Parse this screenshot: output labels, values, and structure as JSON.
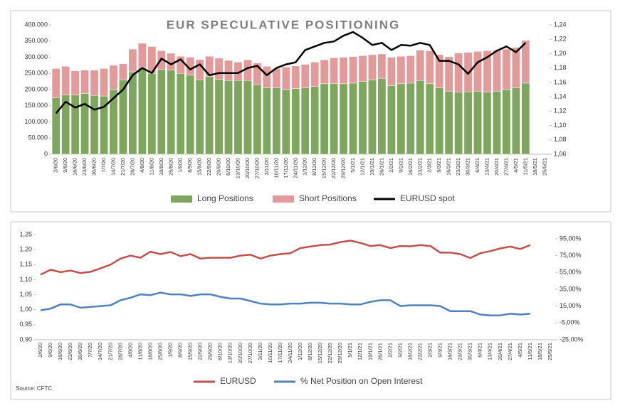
{
  "chart_data": [
    {
      "type": "bar",
      "title": "EUR SPECULATIVE POSITIONING",
      "categories": [
        "2/6/20",
        "9/6/20",
        "16/6/20",
        "23/6/20",
        "30/6/20",
        "7/7/20",
        "14/7/20",
        "21/7/20",
        "28/7/20",
        "4/8/20",
        "11/8/20",
        "18/8/20",
        "25/8/20",
        "1/9/20",
        "8/9/20",
        "15/9/20",
        "22/9/20",
        "29/9/20",
        "6/10/20",
        "13/10/20",
        "20/10/20",
        "27/10/20",
        "3/11/20",
        "10/11/20",
        "17/11/20",
        "24/11/20",
        "1/12/20",
        "8/12/20",
        "15/12/20",
        "22/12/20",
        "29/12/20",
        "5/1/21",
        "12/1/21",
        "19/1/21",
        "26/1/21",
        "2/2/21",
        "9/2/21",
        "16/2/21",
        "23/2/21",
        "2/3/21",
        "9/3/21",
        "16/3/21",
        "23/3/21",
        "30/3/21",
        "6/4/21",
        "13/4/21",
        "20/4/21",
        "27/4/21",
        "4/5/21",
        "11/5/21",
        "18/5/21",
        "25/5/21"
      ],
      "series": [
        {
          "name": "Long Positions",
          "type": "bar",
          "color": "#7ea65e",
          "values": [
            175000,
            183000,
            183000,
            188000,
            182000,
            180000,
            200000,
            230000,
            255000,
            268000,
            250000,
            262000,
            260000,
            250000,
            245000,
            230000,
            240000,
            232000,
            228000,
            228000,
            228000,
            215000,
            205000,
            205000,
            200000,
            203000,
            205000,
            210000,
            218000,
            218000,
            218000,
            220000,
            225000,
            230000,
            235000,
            212000,
            218000,
            220000,
            228000,
            218000,
            205000,
            195000,
            192000,
            193000,
            195000,
            192000,
            195000,
            200000,
            205000,
            220000,
            null,
            null
          ]
        },
        {
          "name": "Short Positions",
          "type": "bar",
          "color": "#e29a9a",
          "values": [
            90000,
            89000,
            75000,
            72000,
            78000,
            85000,
            75000,
            50000,
            70000,
            75000,
            83000,
            58000,
            52000,
            53000,
            55000,
            63000,
            63000,
            65000,
            62000,
            57000,
            64000,
            67000,
            67000,
            60000,
            70000,
            70000,
            73000,
            75000,
            74000,
            80000,
            82000,
            82000,
            80000,
            78000,
            75000,
            88000,
            85000,
            85000,
            94000,
            102000,
            103000,
            107000,
            121000,
            122000,
            123000,
            128000,
            127000,
            125000,
            125000,
            132000,
            null,
            null
          ]
        },
        {
          "name": "EURUSD spot",
          "type": "line",
          "axis": "y2",
          "color": "#000000",
          "values": [
            1.117,
            1.133,
            1.125,
            1.13,
            1.122,
            1.126,
            1.138,
            1.15,
            1.17,
            1.18,
            1.173,
            1.193,
            1.185,
            1.192,
            1.178,
            1.185,
            1.17,
            1.173,
            1.173,
            1.173,
            1.18,
            1.183,
            1.17,
            1.18,
            1.185,
            1.188,
            1.205,
            1.21,
            1.215,
            1.217,
            1.225,
            1.23,
            1.222,
            1.212,
            1.215,
            1.205,
            1.212,
            1.211,
            1.215,
            1.212,
            1.19,
            1.19,
            1.185,
            1.172,
            1.188,
            1.195,
            1.204,
            1.21,
            1.202,
            1.215,
            null,
            null
          ]
        }
      ],
      "ylim": [
        0,
        400000
      ],
      "yticks": [
        0,
        {
          "value": 50000,
          "label": "50.000"
        },
        {
          "value": 100000,
          "label": "100.000"
        },
        {
          "value": 150000,
          "label": "150.000"
        },
        {
          "value": 200000,
          "label": "200.000"
        },
        {
          "value": 250000,
          "label": "250.000"
        },
        {
          "value": 300000,
          "label": "300.000"
        },
        {
          "value": 350000,
          "label": "350.000"
        },
        {
          "value": 400000,
          "label": "400.000"
        }
      ],
      "y2lim": [
        1.06,
        1.24
      ],
      "y2ticks": [
        {
          "value": 1.06,
          "label": "1,06"
        },
        {
          "value": 1.08,
          "label": "1,08"
        },
        {
          "value": 1.1,
          "label": "1,10"
        },
        {
          "value": 1.12,
          "label": "1,12"
        },
        {
          "value": 1.14,
          "label": "1,14"
        },
        {
          "value": 1.16,
          "label": "1,16"
        },
        {
          "value": 1.18,
          "label": "1,18"
        },
        {
          "value": 1.2,
          "label": "1,20"
        },
        {
          "value": 1.22,
          "label": "1,22"
        },
        {
          "value": 1.24,
          "label": "1,24"
        }
      ],
      "grid": false,
      "legend": "bottom"
    },
    {
      "type": "line",
      "categories": [
        "2/6/20",
        "9/6/20",
        "16/6/20",
        "23/6/20",
        "30/6/20",
        "7/7/20",
        "14/7/20",
        "21/7/20",
        "28/7/20",
        "4/8/20",
        "11/8/20",
        "18/8/20",
        "25/8/20",
        "1/9/20",
        "8/9/20",
        "15/9/20",
        "22/9/20",
        "29/9/20",
        "6/10/20",
        "13/10/20",
        "20/10/20",
        "27/10/20",
        "3/11/20",
        "10/11/20",
        "17/11/20",
        "24/11/20",
        "1/12/20",
        "8/12/20",
        "15/12/20",
        "22/12/20",
        "29/12/20",
        "5/1/21",
        "12/1/21",
        "19/1/21",
        "26/1/21",
        "2/2/21",
        "9/2/21",
        "16/2/21",
        "23/2/21",
        "2/3/21",
        "9/3/21",
        "16/3/21",
        "23/3/21",
        "30/3/21",
        "6/4/21",
        "13/4/21",
        "20/4/21",
        "27/4/21",
        "4/5/21",
        "11/5/21",
        "18/5/21",
        "25/5/21"
      ],
      "series": [
        {
          "name": "EURUSD",
          "type": "line",
          "color": "#c0504d",
          "values": [
            1.117,
            1.133,
            1.125,
            1.13,
            1.122,
            1.126,
            1.138,
            1.15,
            1.17,
            1.18,
            1.173,
            1.193,
            1.185,
            1.192,
            1.178,
            1.185,
            1.17,
            1.173,
            1.173,
            1.173,
            1.18,
            1.183,
            1.17,
            1.18,
            1.185,
            1.188,
            1.205,
            1.21,
            1.215,
            1.217,
            1.225,
            1.23,
            1.222,
            1.212,
            1.215,
            1.205,
            1.212,
            1.211,
            1.215,
            1.212,
            1.19,
            1.19,
            1.185,
            1.172,
            1.188,
            1.195,
            1.204,
            1.21,
            1.202,
            1.215,
            null,
            null
          ]
        },
        {
          "name": "% Net Position on Open Interest",
          "type": "line",
          "axis": "y2",
          "color": "#4f81bd",
          "values": [
            10,
            12,
            17,
            17,
            13,
            14,
            15,
            16,
            22,
            25,
            29,
            28,
            31,
            29,
            29,
            27,
            29,
            29,
            26,
            24,
            24,
            21,
            18,
            17,
            17,
            18,
            18,
            19,
            19,
            18,
            18,
            17,
            17,
            20,
            22,
            22,
            15,
            16,
            16,
            16,
            15,
            9,
            9,
            9,
            5,
            4,
            4,
            6,
            5,
            6,
            null,
            null
          ]
        }
      ],
      "ylim": [
        0.9,
        1.25
      ],
      "yticks": [
        {
          "value": 0.9,
          "label": "0,90"
        },
        {
          "value": 0.95,
          "label": "0,95"
        },
        {
          "value": 1.0,
          "label": "1,00"
        },
        {
          "value": 1.05,
          "label": "1,05"
        },
        {
          "value": 1.1,
          "label": "1,10"
        },
        {
          "value": 1.15,
          "label": "1,15"
        },
        {
          "value": 1.2,
          "label": "1,20"
        },
        {
          "value": 1.25,
          "label": "1,25"
        }
      ],
      "y2lim": [
        -25,
        100
      ],
      "y2ticks": [
        {
          "value": -25,
          "label": "-25,00%"
        },
        {
          "value": -5,
          "label": "-5,00%"
        },
        {
          "value": 15,
          "label": "15,00%"
        },
        {
          "value": 35,
          "label": "35,00%"
        },
        {
          "value": 55,
          "label": "55,00%"
        },
        {
          "value": 75,
          "label": "75,00%"
        },
        {
          "value": 95,
          "label": "95,00%"
        }
      ],
      "grid": false,
      "legend": "bottom",
      "source": "Source: CFTC"
    }
  ]
}
